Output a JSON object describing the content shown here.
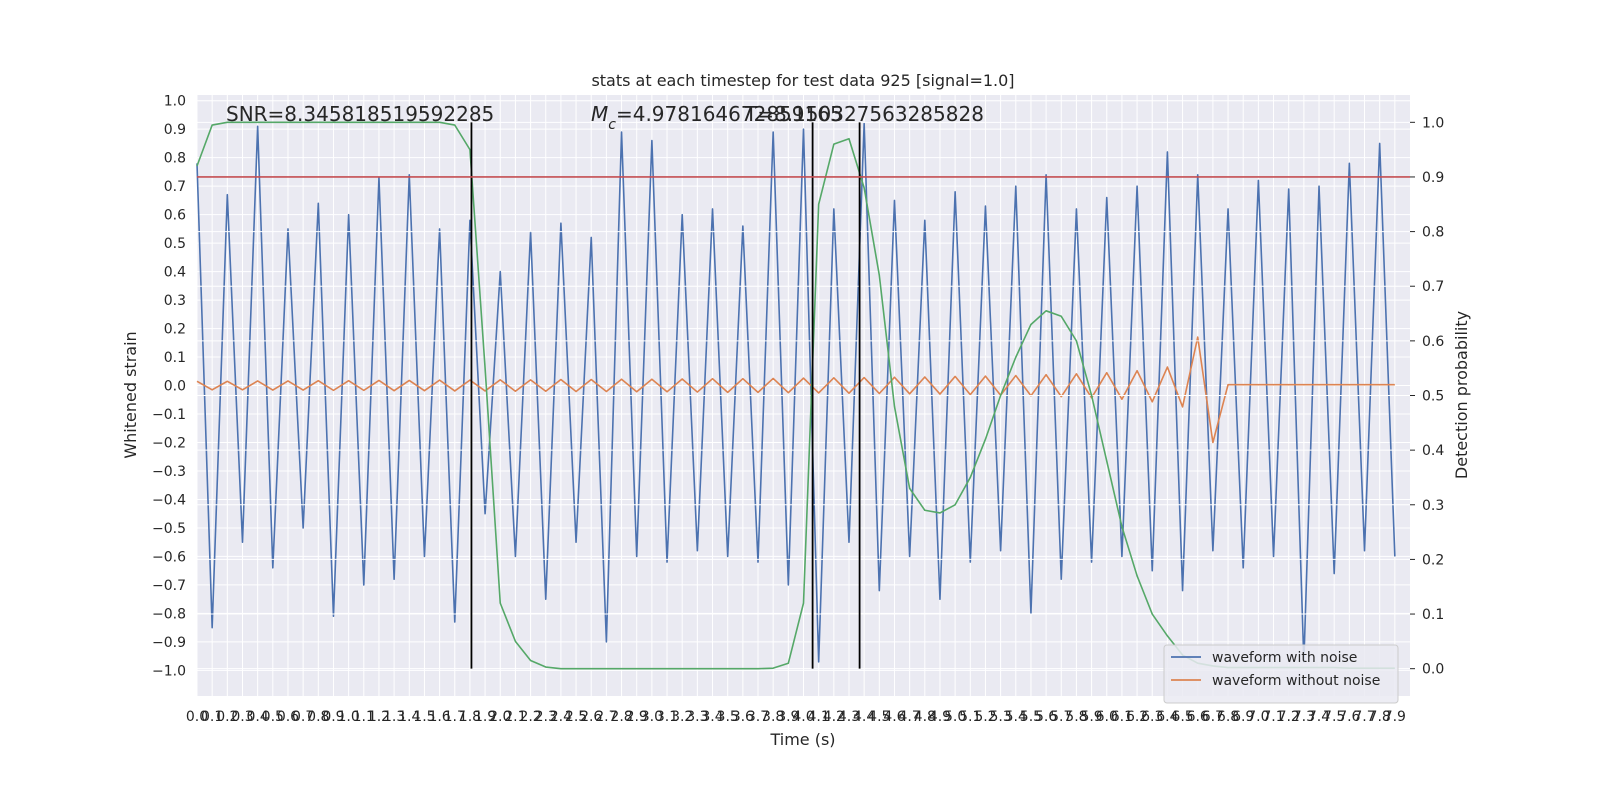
{
  "chart_data": {
    "type": "line",
    "title": "stats at each timestep for test data 925 [signal=1.0]",
    "xlabel": "Time (s)",
    "ylabel": "Whitened strain",
    "y2label": "Detection probability",
    "x": [
      0.0,
      0.1,
      0.2,
      0.3,
      0.4,
      0.5,
      0.6,
      0.7,
      0.8,
      0.9,
      1.0,
      1.1,
      1.2,
      1.3,
      1.4,
      1.5,
      1.6,
      1.7,
      1.8,
      1.9,
      2.0,
      2.1,
      2.2,
      2.3,
      2.4,
      2.5,
      2.6,
      2.7,
      2.8,
      2.9,
      3.0,
      3.1,
      3.2,
      3.3,
      3.4,
      3.5,
      3.6,
      3.7,
      3.8,
      3.9,
      4.0,
      4.1,
      4.2,
      4.3,
      4.4,
      4.5,
      4.6,
      4.7,
      4.8,
      4.9,
      5.0,
      5.1,
      5.2,
      5.3,
      5.4,
      5.5,
      5.6,
      5.7,
      5.8,
      5.9,
      6.0,
      6.1,
      6.2,
      6.3,
      6.4,
      6.5,
      6.6,
      6.7,
      6.8,
      6.9,
      7.0,
      7.1,
      7.2,
      7.3,
      7.4,
      7.5,
      7.6,
      7.7,
      7.8,
      7.9
    ],
    "series": [
      {
        "name": "waveform with noise",
        "color": "#4c72b0",
        "values": [
          0.78,
          -0.85,
          0.67,
          -0.55,
          0.91,
          -0.64,
          0.55,
          -0.5,
          0.64,
          -0.81,
          0.6,
          -0.7,
          0.73,
          -0.68,
          0.74,
          -0.6,
          0.55,
          -0.83,
          0.58,
          -0.45,
          0.4,
          -0.6,
          0.54,
          -0.75,
          0.57,
          -0.55,
          0.52,
          -0.9,
          0.89,
          -0.6,
          0.86,
          -0.62,
          0.6,
          -0.58,
          0.62,
          -0.6,
          0.56,
          -0.62,
          0.89,
          -0.7,
          0.9,
          -0.97,
          0.62,
          -0.55,
          0.92,
          -0.72,
          0.65,
          -0.6,
          0.58,
          -0.75,
          0.68,
          -0.62,
          0.63,
          -0.58,
          0.7,
          -0.8,
          0.74,
          -0.68,
          0.62,
          -0.62,
          0.66,
          -0.6,
          0.7,
          -0.65,
          0.82,
          -0.72,
          0.74,
          -0.58,
          0.62,
          -0.64,
          0.72,
          -0.6,
          0.69,
          -0.97,
          0.7,
          -0.66,
          0.78,
          -0.58,
          0.85,
          -0.6
        ]
      },
      {
        "name": "waveform without noise",
        "color": "#dd8452",
        "values": [
          0.015,
          -0.015,
          0.015,
          -0.015,
          0.016,
          -0.016,
          0.016,
          -0.016,
          0.017,
          -0.017,
          0.017,
          -0.017,
          0.018,
          -0.018,
          0.018,
          -0.018,
          0.019,
          -0.019,
          0.019,
          -0.019,
          0.02,
          -0.02,
          0.02,
          -0.02,
          0.021,
          -0.021,
          0.021,
          -0.021,
          0.022,
          -0.022,
          0.022,
          -0.022,
          0.023,
          -0.023,
          0.024,
          -0.024,
          0.024,
          -0.024,
          0.025,
          -0.025,
          0.026,
          -0.026,
          0.027,
          -0.027,
          0.028,
          -0.028,
          0.029,
          -0.029,
          0.03,
          -0.03,
          0.032,
          -0.032,
          0.033,
          -0.034,
          0.035,
          -0.036,
          0.038,
          -0.039,
          0.041,
          -0.043,
          0.045,
          -0.048,
          0.052,
          -0.057,
          0.065,
          -0.075,
          0.17,
          -0.2,
          0.003,
          0.003,
          0.003,
          0.003,
          0.003,
          0.003,
          0.003,
          0.003,
          0.003,
          0.003,
          0.003,
          0.003
        ]
      },
      {
        "color": "#55a868",
        "axis": "y2",
        "values": [
          0.92,
          0.995,
          1.0,
          1.0,
          1.0,
          1.0,
          1.0,
          1.0,
          1.0,
          1.0,
          1.0,
          1.0,
          1.0,
          1.0,
          1.0,
          1.0,
          1.0,
          0.995,
          0.95,
          0.55,
          0.12,
          0.05,
          0.015,
          0.003,
          0,
          0,
          0,
          0,
          0,
          0,
          0,
          0,
          0,
          0,
          0,
          0,
          0,
          0,
          0.001,
          0.01,
          0.12,
          0.85,
          0.96,
          0.97,
          0.88,
          0.72,
          0.48,
          0.33,
          0.29,
          0.285,
          0.3,
          0.35,
          0.42,
          0.5,
          0.57,
          0.63,
          0.655,
          0.645,
          0.6,
          0.5,
          0.38,
          0.26,
          0.17,
          0.1,
          0.06,
          0.025,
          0.01,
          0.005,
          0.002,
          0.002,
          0.002,
          0.002,
          0.002,
          0.002,
          0.002,
          0.002,
          0.001,
          0.001,
          0.001,
          0.001
        ]
      }
    ],
    "vlines": {
      "x": [
        1.81,
        4.06,
        4.37
      ],
      "ymin": 0,
      "ymax": 1,
      "axis": "y2",
      "color": "#000000"
    },
    "threshold": {
      "value": 0.9,
      "axis": "y2",
      "color": "#c44e52"
    },
    "annotations": [
      {
        "text": "SNR=8.345818519592285"
      },
      {
        "symbol": "M",
        "subscript": "c",
        "text": "=4.978164672859165"
      },
      {
        "text": "T=8.150327563285828"
      }
    ],
    "xlim": [
      0,
      8.0
    ],
    "ylim": [
      -1.09,
      1.02
    ],
    "y2lim": [
      -0.05,
      1.05
    ],
    "xticks": [
      {
        "value": 0,
        "label": "0.0"
      },
      0.1,
      0.2,
      0.3,
      0.4,
      0.5,
      0.6,
      0.7,
      0.8,
      0.9,
      {
        "value": 1,
        "label": "1.0"
      },
      1.1,
      1.2,
      1.3,
      1.4,
      1.5,
      1.6,
      1.7,
      1.8,
      1.9,
      {
        "value": 2,
        "label": "2.0"
      },
      2.1,
      2.2,
      2.3,
      2.4,
      2.5,
      2.6,
      2.7,
      2.8,
      2.9,
      {
        "value": 3,
        "label": "3.0"
      },
      3.1,
      3.2,
      3.3,
      3.4,
      3.5,
      3.6,
      3.7,
      3.8,
      3.9,
      {
        "value": 4,
        "label": "4.0"
      },
      4.1,
      4.2,
      4.3,
      4.4,
      4.5,
      4.6,
      4.7,
      4.8,
      4.9,
      {
        "value": 5,
        "label": "5.0"
      },
      5.1,
      5.2,
      5.3,
      5.4,
      5.5,
      5.6,
      5.7,
      5.8,
      5.9,
      {
        "value": 6,
        "label": "6.0"
      },
      6.1,
      6.2,
      6.3,
      6.4,
      6.5,
      6.6,
      6.7,
      6.8,
      6.9,
      {
        "value": 7,
        "label": "7.0"
      },
      7.1,
      7.2,
      7.3,
      7.4,
      7.5,
      7.6,
      7.7,
      7.8,
      7.9
    ],
    "yticks": [
      {
        "value": -1,
        "label": "−1.0"
      },
      {
        "value": -0.9,
        "label": "−0.9"
      },
      {
        "value": -0.8,
        "label": "−0.8"
      },
      {
        "value": -0.7,
        "label": "−0.7"
      },
      {
        "value": -0.6,
        "label": "−0.6"
      },
      {
        "value": -0.5,
        "label": "−0.5"
      },
      {
        "value": -0.4,
        "label": "−0.4"
      },
      {
        "value": -0.3,
        "label": "−0.3"
      },
      {
        "value": -0.2,
        "label": "−0.2"
      },
      {
        "value": -0.1,
        "label": "−0.1"
      },
      {
        "value": 0,
        "label": "0.0"
      },
      0.1,
      0.2,
      0.3,
      0.4,
      0.5,
      0.6,
      0.7,
      0.8,
      0.9,
      {
        "value": 1,
        "label": "1.0"
      }
    ],
    "y2ticks": [
      {
        "value": 0,
        "label": "0.0"
      },
      0.1,
      0.2,
      0.3,
      0.4,
      0.5,
      0.6,
      0.7,
      0.8,
      0.9,
      {
        "value": 1,
        "label": "1.0"
      }
    ],
    "grid": true,
    "legend": "lower right"
  }
}
